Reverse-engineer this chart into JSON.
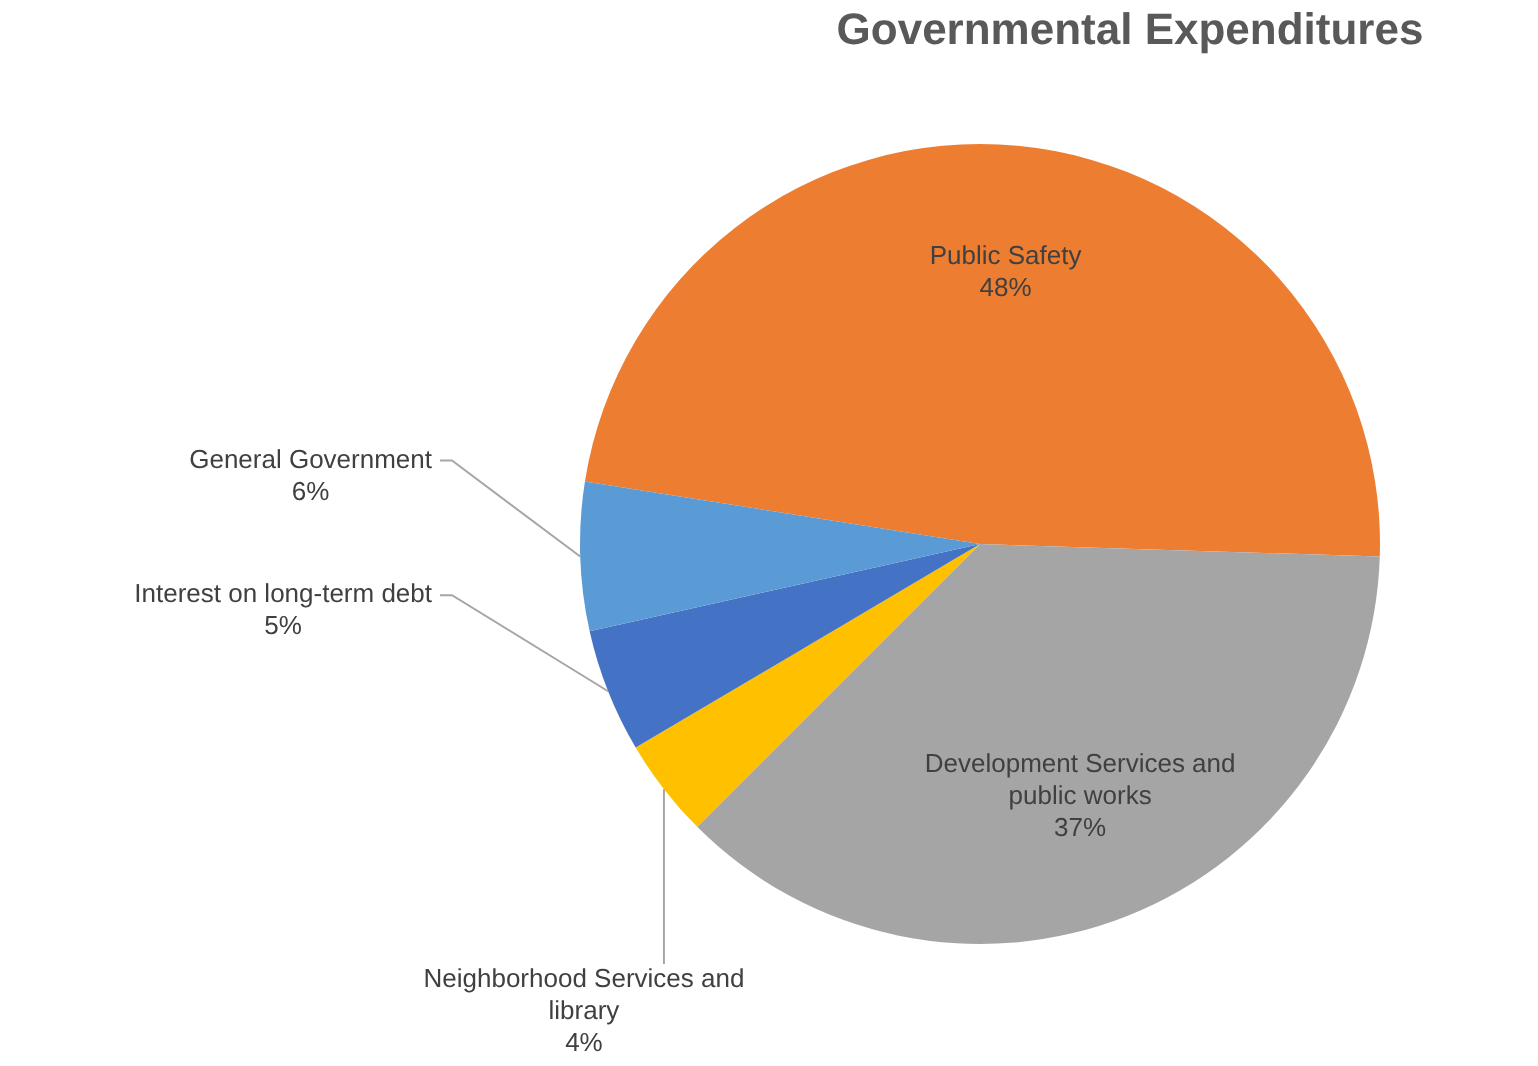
{
  "chart_data": {
    "type": "pie",
    "title": "Governmental Expenditures",
    "categories": [
      "Public Safety",
      "Development Services and public works",
      "Neighborhood Services and library",
      "Interest on long-term debt",
      "General Government"
    ],
    "values": [
      48,
      37,
      4,
      5,
      6
    ],
    "value_labels": [
      "48%",
      "37%",
      "4%",
      "5%",
      "6%"
    ],
    "colors": [
      "#ed7d31",
      "#a5a5a5",
      "#ffc000",
      "#4472c4",
      "#5b9bd5"
    ],
    "legend": false
  }
}
